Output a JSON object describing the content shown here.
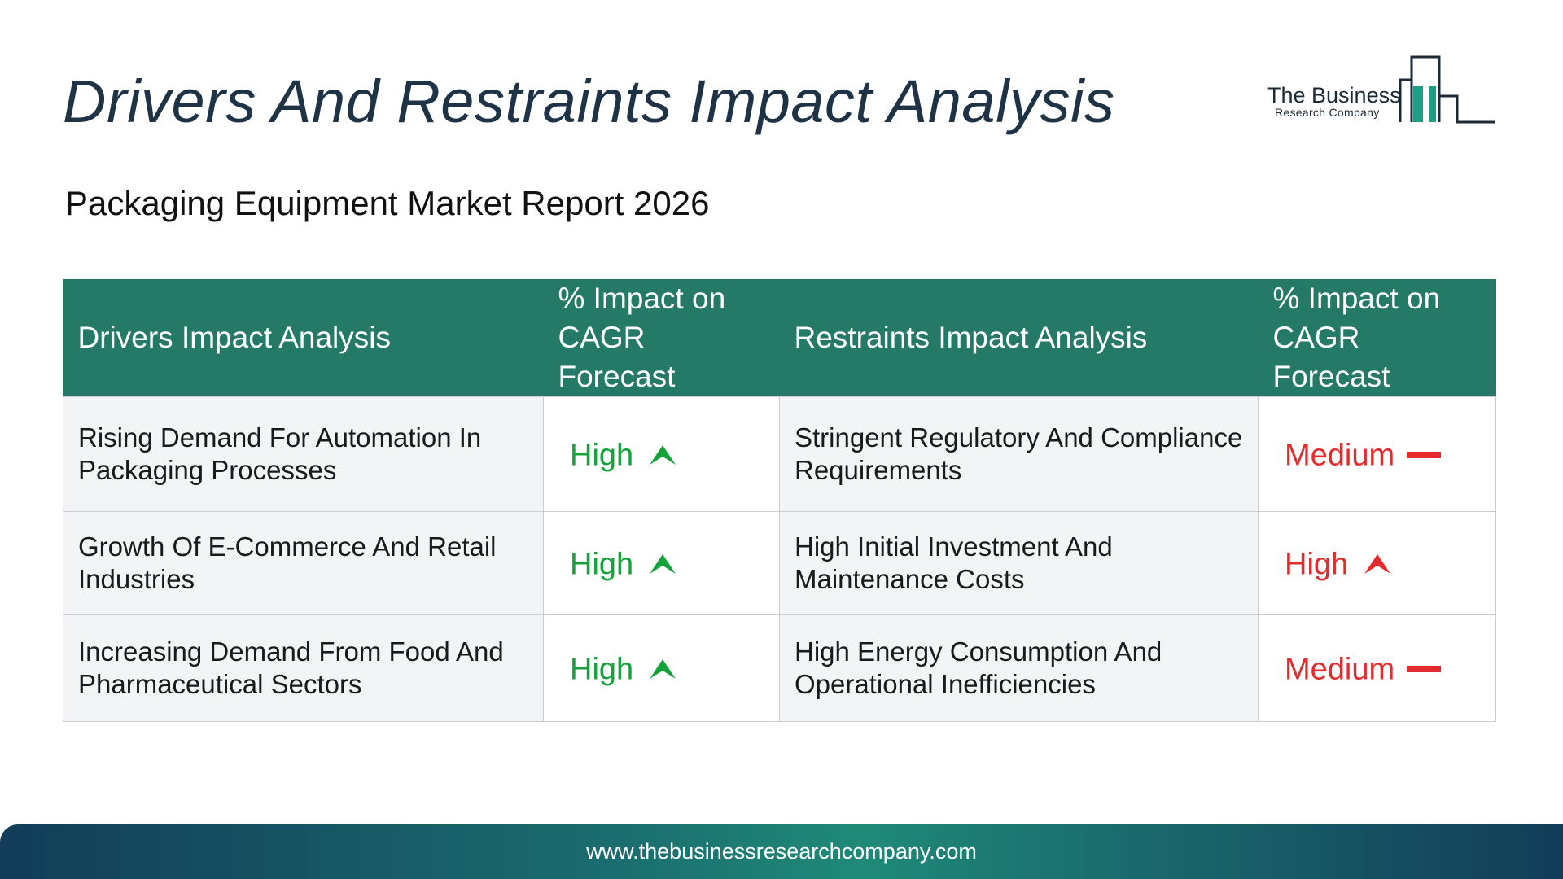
{
  "header": {
    "title": "Drivers And Restraints Impact Analysis",
    "subtitle": "Packaging Equipment Market Report 2026"
  },
  "logo": {
    "main_text": "The Business",
    "sub_text": "Research Company",
    "color": "#1f9e86"
  },
  "table": {
    "headers": {
      "drivers": "Drivers Impact Analysis",
      "drivers_impact": "% Impact on CAGR Forecast",
      "restraints": "Restraints Impact Analysis",
      "restraints_impact": "% Impact on CAGR Forecast"
    },
    "rows": [
      {
        "driver": "Rising Demand For Automation In Packaging Processes",
        "driver_impact": "High",
        "driver_icon": "arrow-up-icon",
        "restraint": "Stringent Regulatory And Compliance Requirements",
        "restraint_impact": "Medium",
        "restraint_icon": "dash-icon"
      },
      {
        "driver": "Growth Of E-Commerce And Retail Industries",
        "driver_impact": "High",
        "driver_icon": "arrow-up-icon",
        "restraint": "High Initial Investment And Maintenance Costs",
        "restraint_impact": "High",
        "restraint_icon": "arrow-up-icon"
      },
      {
        "driver": "Increasing Demand From Food And Pharmaceutical Sectors",
        "driver_impact": "High",
        "driver_icon": "arrow-up-icon",
        "restraint": "High Energy Consumption And Operational Inefficiencies",
        "restraint_impact": "Medium",
        "restraint_icon": "dash-icon"
      }
    ]
  },
  "colors": {
    "header_bg": "#247a67",
    "driver_green": "#15a23a",
    "restraint_red": "#e32b2b"
  },
  "footer": {
    "url": "www.thebusinessresearchcompany.com"
  }
}
